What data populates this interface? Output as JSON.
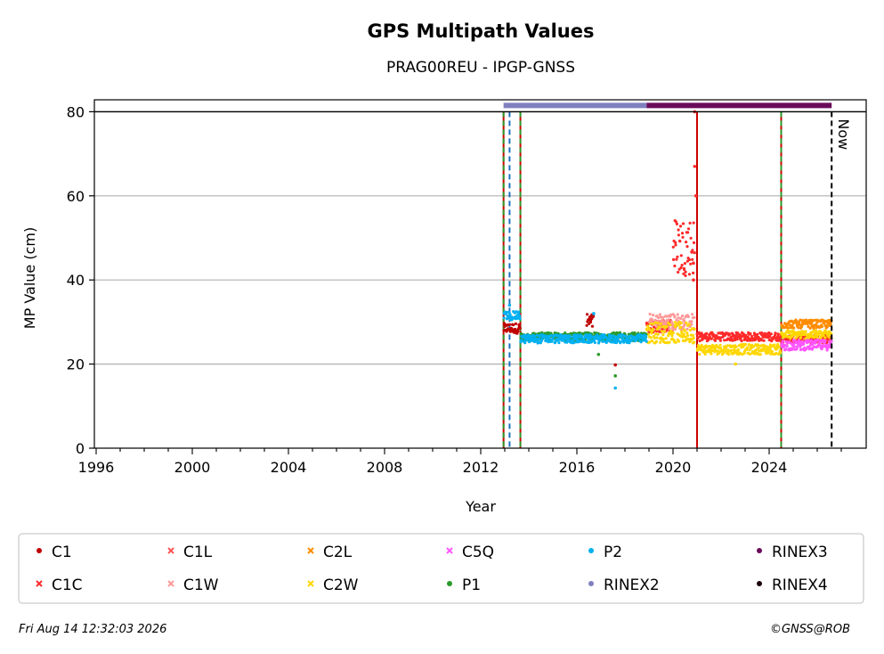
{
  "footer": {
    "timestamp": "Fri Aug 14 12:32:03 2026",
    "copyright": "©GNSS@ROB"
  },
  "chart_data": {
    "type": "scatter",
    "title": "GPS Multipath Values",
    "subtitle": "PRAG00REU - IPGP-GNSS",
    "xlabel": "Year",
    "ylabel": "MP Value (cm)",
    "xlim": [
      1996,
      2027.6
    ],
    "ylim": [
      0,
      83
    ],
    "x_ticks": [
      1996,
      2000,
      2004,
      2008,
      2012,
      2016,
      2020,
      2024
    ],
    "y_ticks": [
      0,
      20,
      40,
      60,
      80
    ],
    "grid": "horizontal",
    "now_label": "Now",
    "now_year": 2026.6,
    "reference_line_y": 80,
    "legend_placement": "below",
    "vertical_events": [
      {
        "year": 2012.95,
        "color": "#cc0000",
        "style": "solid"
      },
      {
        "year": 2012.95,
        "color": "#2a9a2a",
        "style": "dashed"
      },
      {
        "year": 2013.2,
        "color": "#1f6fbf",
        "style": "dashed"
      },
      {
        "year": 2013.65,
        "color": "#cc0000",
        "style": "solid"
      },
      {
        "year": 2013.65,
        "color": "#2a9a2a",
        "style": "dashed"
      },
      {
        "year": 2021.0,
        "color": "#cc0000",
        "style": "solid"
      },
      {
        "year": 2024.5,
        "color": "#cc0000",
        "style": "solid"
      },
      {
        "year": 2024.5,
        "color": "#2a9a2a",
        "style": "dashed"
      }
    ],
    "rinex_bars": [
      {
        "name": "RINEX2",
        "start": 2012.95,
        "end": 2018.9,
        "y": 81.5,
        "color": "#8080c0"
      },
      {
        "name": "RINEX3",
        "start": 2018.9,
        "end": 2026.6,
        "y": 81.5,
        "color": "#6a0a5a"
      }
    ],
    "legend": [
      {
        "name": "C1",
        "color": "#c00000",
        "marker": "dot"
      },
      {
        "name": "C1L",
        "color": "#ff5555",
        "marker": "x"
      },
      {
        "name": "C2L",
        "color": "#ff8c00",
        "marker": "x"
      },
      {
        "name": "C5Q",
        "color": "#ff55ff",
        "marker": "x"
      },
      {
        "name": "P2",
        "color": "#00b0f0",
        "marker": "dot"
      },
      {
        "name": "RINEX3",
        "color": "#6a0a5a",
        "marker": "dot"
      },
      {
        "name": "C1C",
        "color": "#ff2a2a",
        "marker": "x"
      },
      {
        "name": "C1W",
        "color": "#ff9999",
        "marker": "x"
      },
      {
        "name": "C2W",
        "color": "#ffd700",
        "marker": "x"
      },
      {
        "name": "P1",
        "color": "#2a9a2a",
        "marker": "dot"
      },
      {
        "name": "RINEX2",
        "color": "#8080c0",
        "marker": "dot"
      },
      {
        "name": "RINEX4",
        "color": "#1a0010",
        "marker": "dot"
      }
    ],
    "series": [
      {
        "name": "C1",
        "color": "#c00000",
        "segments": [
          {
            "x0": 2012.95,
            "x1": 2013.65,
            "y": 28.5,
            "jitter": 1.2
          },
          {
            "x0": 2016.4,
            "x1": 2016.7,
            "y": 30,
            "jitter": 2
          }
        ],
        "outliers": [
          [
            2017.6,
            19.8
          ]
        ]
      },
      {
        "name": "C1C",
        "color": "#ff2a2a",
        "segments": [
          {
            "x0": 2021.0,
            "x1": 2024.5,
            "y": 26.5,
            "jitter": 1.0
          },
          {
            "x0": 2024.5,
            "x1": 2026.6,
            "y": 26.0,
            "jitter": 1.0
          },
          {
            "x0": 2020.0,
            "x1": 2020.9,
            "y": 48,
            "jitter": 7
          },
          {
            "x0": 2018.9,
            "x1": 2020.0,
            "y": 29,
            "jitter": 1.5
          }
        ],
        "outliers": [
          [
            2020.9,
            80
          ],
          [
            2020.9,
            67
          ],
          [
            2020.95,
            60
          ],
          [
            2020.85,
            44
          ],
          [
            2020.85,
            40
          ]
        ]
      },
      {
        "name": "C1W",
        "color": "#ff9999",
        "segments": [
          {
            "x0": 2019.0,
            "x1": 2020.9,
            "y": 30,
            "jitter": 2
          }
        ],
        "outliers": []
      },
      {
        "name": "C2W",
        "color": "#ffd700",
        "segments": [
          {
            "x0": 2018.9,
            "x1": 2020.9,
            "y": 27.5,
            "jitter": 2.5
          },
          {
            "x0": 2021.0,
            "x1": 2024.5,
            "y": 23.5,
            "jitter": 1.2
          },
          {
            "x0": 2024.5,
            "x1": 2026.6,
            "y": 27.0,
            "jitter": 1.0
          }
        ],
        "outliers": [
          [
            2022.6,
            20
          ]
        ]
      },
      {
        "name": "C2L",
        "color": "#ff8c00",
        "segments": [
          {
            "x0": 2024.5,
            "x1": 2026.6,
            "y": 29.5,
            "jitter": 1.0
          }
        ],
        "outliers": []
      },
      {
        "name": "C5Q",
        "color": "#ff55ff",
        "segments": [
          {
            "x0": 2024.5,
            "x1": 2026.6,
            "y": 24.5,
            "jitter": 1.2
          }
        ],
        "outliers": []
      },
      {
        "name": "P1",
        "color": "#2a9a2a",
        "segments": [
          {
            "x0": 2013.65,
            "x1": 2018.9,
            "y": 26.5,
            "jitter": 1.0
          }
        ],
        "outliers": [
          [
            2016.9,
            22.3
          ],
          [
            2017.6,
            17.2
          ]
        ]
      },
      {
        "name": "P2",
        "color": "#00b0f0",
        "segments": [
          {
            "x0": 2012.95,
            "x1": 2013.65,
            "y": 31.5,
            "jitter": 1.0
          },
          {
            "x0": 2013.65,
            "x1": 2018.9,
            "y": 26.0,
            "jitter": 1.0
          }
        ],
        "outliers": [
          [
            2017.6,
            14.3
          ],
          [
            2016.7,
            32
          ],
          [
            2013.2,
            34
          ]
        ]
      }
    ]
  }
}
